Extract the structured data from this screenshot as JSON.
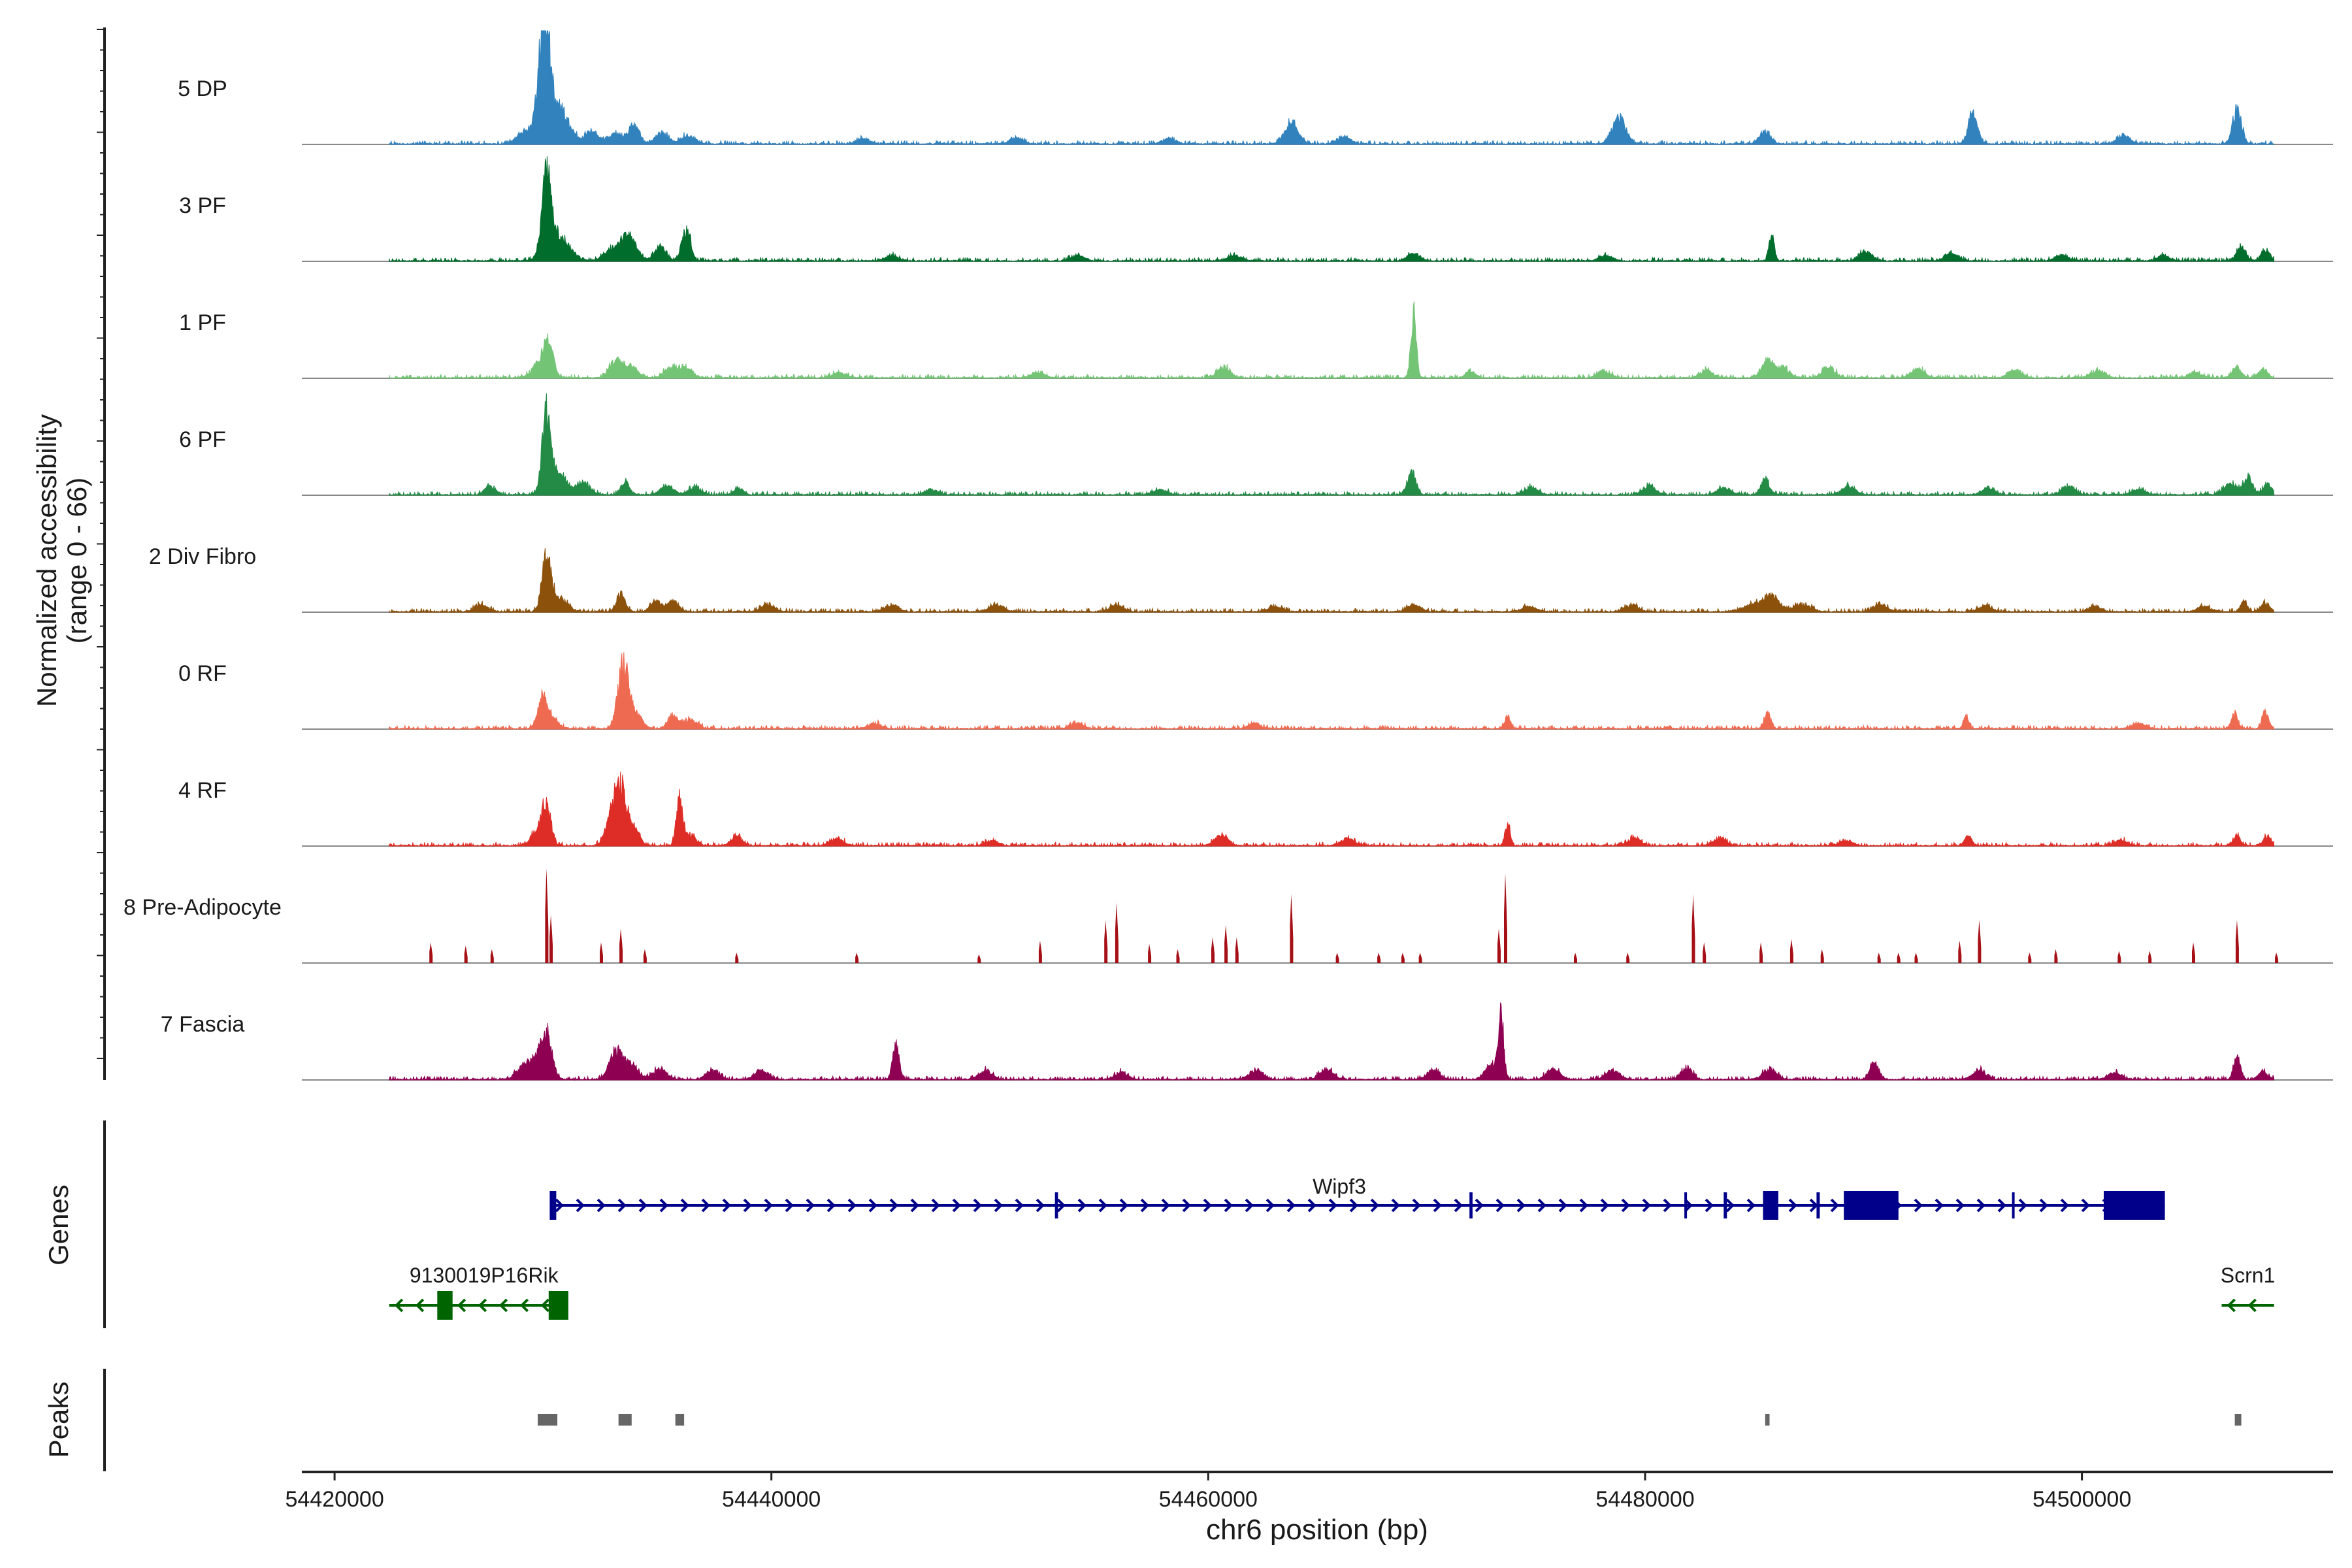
{
  "chart_data": {
    "type": "area",
    "title": "",
    "xlabel": "chr6 position (bp)",
    "ylabel": "Normalized accessibility",
    "ylabel_range": "(range 0 - 66)",
    "xlim": [
      54418500,
      54511500
    ],
    "ylim": [
      0,
      66
    ],
    "x_ticks": [
      54420000,
      54440000,
      54460000,
      54480000,
      54500000
    ],
    "x_tick_labels": [
      "54420000",
      "54440000",
      "54460000",
      "54480000",
      "54500000"
    ],
    "signal_extent": [
      54422500,
      54508800
    ],
    "tracks": [
      {
        "name": "5 DP",
        "color": "#3182bd",
        "peaks": [
          [
            54429600,
            66,
            250
          ],
          [
            54430300,
            20,
            450
          ],
          [
            54428800,
            8,
            400
          ],
          [
            54431800,
            7,
            300
          ],
          [
            54432900,
            6,
            300
          ],
          [
            54433700,
            10,
            250
          ],
          [
            54435000,
            6,
            300
          ],
          [
            54436200,
            5,
            300
          ],
          [
            54444200,
            3,
            300
          ],
          [
            54451200,
            3,
            300
          ],
          [
            54458200,
            3,
            300
          ],
          [
            54463800,
            13,
            300
          ],
          [
            54466200,
            4,
            300
          ],
          [
            54478800,
            15,
            300
          ],
          [
            54485500,
            7,
            250
          ],
          [
            54495000,
            19,
            200
          ],
          [
            54501900,
            5,
            300
          ],
          [
            54507100,
            20,
            200
          ]
        ]
      },
      {
        "name": "3 PF",
        "color": "#006d2c",
        "peaks": [
          [
            54429700,
            42,
            200
          ],
          [
            54430200,
            15,
            500
          ],
          [
            54433300,
            12,
            300
          ],
          [
            54432600,
            6,
            300
          ],
          [
            54434900,
            8,
            250
          ],
          [
            54436100,
            18,
            200
          ],
          [
            54433700,
            6,
            300
          ],
          [
            54445500,
            3,
            300
          ],
          [
            54454000,
            3,
            300
          ],
          [
            54461200,
            3,
            300
          ],
          [
            54469400,
            4,
            300
          ],
          [
            54478200,
            3,
            300
          ],
          [
            54485800,
            15,
            120
          ],
          [
            54490100,
            5,
            300
          ],
          [
            54494000,
            4,
            300
          ],
          [
            54499100,
            3,
            300
          ],
          [
            54503700,
            3,
            300
          ],
          [
            54507300,
            8,
            200
          ],
          [
            54508400,
            6,
            200
          ]
        ]
      },
      {
        "name": "1 PF",
        "color": "#74c476",
        "peaks": [
          [
            54429800,
            20,
            200
          ],
          [
            54429400,
            8,
            350
          ],
          [
            54432900,
            10,
            300
          ],
          [
            54433600,
            6,
            300
          ],
          [
            54435400,
            6,
            300
          ],
          [
            54436100,
            5,
            300
          ],
          [
            54443100,
            3,
            300
          ],
          [
            54452200,
            3,
            300
          ],
          [
            54460700,
            6,
            300
          ],
          [
            54469400,
            36,
            120
          ],
          [
            54472000,
            4,
            200
          ],
          [
            54478100,
            4,
            300
          ],
          [
            54482800,
            4,
            300
          ],
          [
            54485600,
            10,
            250
          ],
          [
            54486300,
            6,
            300
          ],
          [
            54488400,
            6,
            300
          ],
          [
            54492500,
            5,
            300
          ],
          [
            54496900,
            4,
            300
          ],
          [
            54500700,
            4,
            300
          ],
          [
            54505200,
            3,
            300
          ],
          [
            54507100,
            6,
            200
          ],
          [
            54508300,
            5,
            200
          ]
        ]
      },
      {
        "name": "6 PF",
        "color": "#238b45",
        "peaks": [
          [
            54429700,
            45,
            200
          ],
          [
            54430300,
            12,
            350
          ],
          [
            54431400,
            7,
            300
          ],
          [
            54433300,
            7,
            200
          ],
          [
            54427100,
            5,
            250
          ],
          [
            54435200,
            5,
            300
          ],
          [
            54436500,
            4,
            300
          ],
          [
            54438500,
            4,
            200
          ],
          [
            54447300,
            3,
            300
          ],
          [
            54457800,
            3,
            300
          ],
          [
            54469300,
            12,
            200
          ],
          [
            54474800,
            4,
            300
          ],
          [
            54480200,
            5,
            300
          ],
          [
            54483600,
            4,
            300
          ],
          [
            54485500,
            9,
            200
          ],
          [
            54489300,
            5,
            300
          ],
          [
            54495700,
            4,
            300
          ],
          [
            54499400,
            5,
            300
          ],
          [
            54502600,
            3,
            300
          ],
          [
            54506800,
            6,
            300
          ],
          [
            54507600,
            10,
            200
          ],
          [
            54508500,
            6,
            200
          ]
        ]
      },
      {
        "name": "2 Div Fibro",
        "color": "#8c510a",
        "peaks": [
          [
            54429700,
            29,
            200
          ],
          [
            54430200,
            8,
            400
          ],
          [
            54426700,
            4,
            300
          ],
          [
            54433100,
            10,
            200
          ],
          [
            54434700,
            6,
            250
          ],
          [
            54435500,
            6,
            250
          ],
          [
            54439800,
            4,
            300
          ],
          [
            54445500,
            4,
            300
          ],
          [
            54450300,
            4,
            300
          ],
          [
            54455800,
            4,
            300
          ],
          [
            54463100,
            3,
            300
          ],
          [
            54469400,
            4,
            300
          ],
          [
            54474700,
            3,
            300
          ],
          [
            54479400,
            4,
            300
          ],
          [
            54485800,
            8,
            350
          ],
          [
            54485000,
            4,
            500
          ],
          [
            54487200,
            4,
            400
          ],
          [
            54490800,
            4,
            300
          ],
          [
            54495600,
            3,
            300
          ],
          [
            54500600,
            3,
            300
          ],
          [
            54505600,
            3,
            300
          ],
          [
            54507400,
            6,
            150
          ],
          [
            54508400,
            5,
            200
          ]
        ]
      },
      {
        "name": "0 RF",
        "color": "#ee6a50",
        "peaks": [
          [
            54429500,
            17,
            200
          ],
          [
            54429900,
            6,
            300
          ],
          [
            54433200,
            36,
            230
          ],
          [
            54433700,
            10,
            300
          ],
          [
            54435500,
            7,
            250
          ],
          [
            54436300,
            5,
            300
          ],
          [
            54444700,
            3,
            300
          ],
          [
            54454000,
            3,
            300
          ],
          [
            54462100,
            3,
            300
          ],
          [
            54473700,
            8,
            120
          ],
          [
            54485600,
            9,
            150
          ],
          [
            54494700,
            8,
            120
          ],
          [
            54502600,
            3,
            300
          ],
          [
            54507000,
            8,
            150
          ],
          [
            54508400,
            9,
            150
          ]
        ]
      },
      {
        "name": "4 RF",
        "color": "#de2d26",
        "peaks": [
          [
            54429700,
            22,
            200
          ],
          [
            54429300,
            8,
            300
          ],
          [
            54433100,
            34,
            300
          ],
          [
            54432600,
            10,
            250
          ],
          [
            54433800,
            8,
            200
          ],
          [
            54435800,
            26,
            150
          ],
          [
            54436300,
            6,
            250
          ],
          [
            54438400,
            5,
            250
          ],
          [
            54443000,
            4,
            300
          ],
          [
            54450100,
            3,
            300
          ],
          [
            54460600,
            6,
            300
          ],
          [
            54466400,
            4,
            300
          ],
          [
            54473700,
            12,
            120
          ],
          [
            54479500,
            4,
            300
          ],
          [
            54483400,
            4,
            300
          ],
          [
            54489200,
            3,
            300
          ],
          [
            54494800,
            6,
            150
          ],
          [
            54501800,
            3,
            300
          ],
          [
            54507100,
            6,
            150
          ],
          [
            54508500,
            5,
            200
          ]
        ]
      },
      {
        "name": "8 Pre-Adipocyte",
        "color": "#a50f15",
        "bars": [
          [
            54424400,
            12
          ],
          [
            54426000,
            10
          ],
          [
            54427200,
            8
          ],
          [
            54429700,
            55
          ],
          [
            54429900,
            28
          ],
          [
            54432200,
            12
          ],
          [
            54433100,
            20
          ],
          [
            54434200,
            8
          ],
          [
            54438400,
            6
          ],
          [
            54443900,
            6
          ],
          [
            54449500,
            5
          ],
          [
            54452300,
            13
          ],
          [
            54455300,
            25
          ],
          [
            54455800,
            35
          ],
          [
            54457300,
            11
          ],
          [
            54458600,
            8
          ],
          [
            54460200,
            15
          ],
          [
            54460800,
            22
          ],
          [
            54461300,
            15
          ],
          [
            54463800,
            40
          ],
          [
            54465900,
            6
          ],
          [
            54467800,
            6
          ],
          [
            54468900,
            6
          ],
          [
            54469700,
            6
          ],
          [
            54473600,
            52
          ],
          [
            54473300,
            20
          ],
          [
            54476800,
            6
          ],
          [
            54479200,
            6
          ],
          [
            54482200,
            40
          ],
          [
            54482700,
            12
          ],
          [
            54485300,
            12
          ],
          [
            54486700,
            14
          ],
          [
            54488100,
            8
          ],
          [
            54490700,
            6
          ],
          [
            54491600,
            6
          ],
          [
            54492400,
            6
          ],
          [
            54494400,
            13
          ],
          [
            54495300,
            25
          ],
          [
            54497600,
            6
          ],
          [
            54498800,
            8
          ],
          [
            54501700,
            7
          ],
          [
            54503100,
            7
          ],
          [
            54505100,
            12
          ],
          [
            54507100,
            25
          ],
          [
            54508900,
            6
          ]
        ]
      },
      {
        "name": "7 Fascia",
        "color": "#8e0152",
        "peaks": [
          [
            54429700,
            24,
            250
          ],
          [
            54429200,
            10,
            350
          ],
          [
            54428600,
            6,
            300
          ],
          [
            54432900,
            16,
            300
          ],
          [
            54433600,
            8,
            300
          ],
          [
            54434900,
            6,
            300
          ],
          [
            54437300,
            5,
            300
          ],
          [
            54439500,
            5,
            300
          ],
          [
            54445700,
            19,
            150
          ],
          [
            54449800,
            5,
            300
          ],
          [
            54456000,
            4,
            300
          ],
          [
            54462200,
            5,
            300
          ],
          [
            54465400,
            6,
            300
          ],
          [
            54470300,
            5,
            300
          ],
          [
            54473400,
            36,
            120
          ],
          [
            54473000,
            8,
            300
          ],
          [
            54475800,
            6,
            300
          ],
          [
            54478500,
            5,
            300
          ],
          [
            54481900,
            7,
            250
          ],
          [
            54485700,
            6,
            300
          ],
          [
            54490500,
            9,
            200
          ],
          [
            54495300,
            5,
            300
          ],
          [
            54501500,
            4,
            300
          ],
          [
            54507100,
            14,
            150
          ],
          [
            54508300,
            5,
            200
          ]
        ]
      }
    ],
    "genes_panel": {
      "label": "Genes",
      "genes": [
        {
          "name": "Wipf3",
          "strand": "+",
          "color": "#00008b",
          "start": 54429900,
          "end": 54503800,
          "exons": [
            [
              54429850,
              54430150
            ],
            [
              54452980,
              54453120
            ],
            [
              54471960,
              54472100
            ],
            [
              54481800,
              54481900
            ],
            [
              54483600,
              54483750
            ],
            [
              54485400,
              54486100
            ],
            [
              54487850,
              54488000
            ],
            [
              54489100,
              54491600
            ],
            [
              54496800,
              54496900
            ],
            [
              54501000,
              54503800
            ]
          ]
        },
        {
          "name": "9130019P16Rik",
          "strand": "-",
          "color": "#006400",
          "start": 54422500,
          "end": 54430100,
          "exons": [
            [
              54424700,
              54425400
            ],
            [
              54429800,
              54430700
            ]
          ]
        },
        {
          "name": "Scrn1",
          "strand": "-",
          "color": "#006400",
          "start": 54506400,
          "end": 54508800,
          "exons": []
        }
      ]
    },
    "peaks_panel": {
      "label": "Peaks",
      "color": "#666666",
      "regions": [
        [
          54429300,
          54430200
        ],
        [
          54433000,
          54433600
        ],
        [
          54435600,
          54436000
        ],
        [
          54485500,
          54485700
        ],
        [
          54507000,
          54507300
        ]
      ]
    }
  }
}
